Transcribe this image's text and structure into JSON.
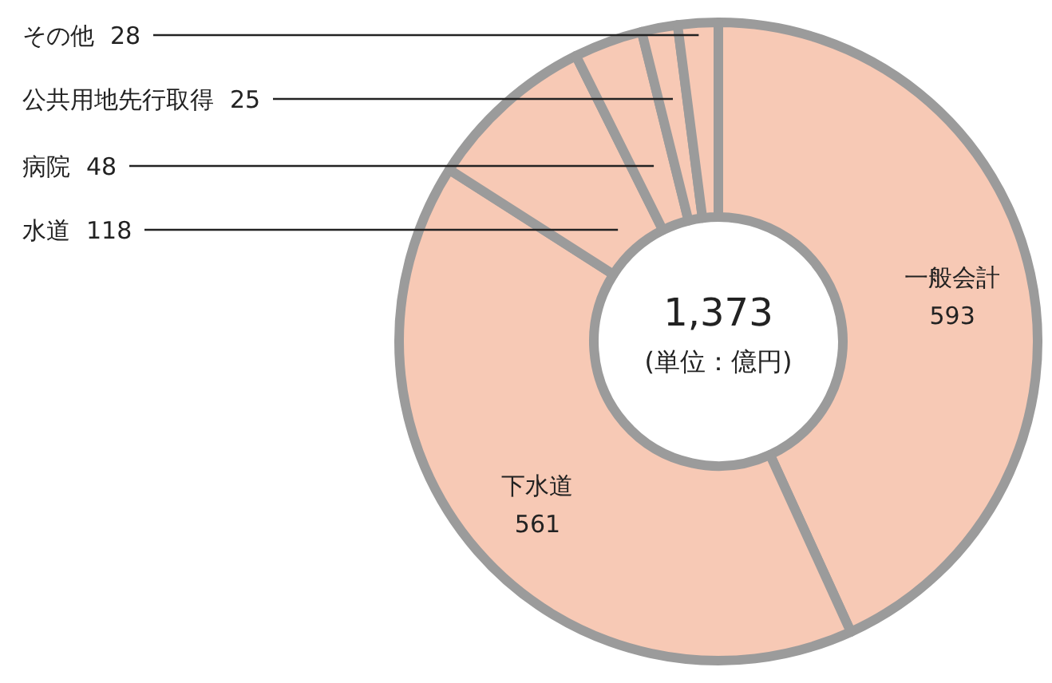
{
  "chart_data": {
    "type": "donut",
    "categories": [
      "一般会計",
      "下水道",
      "水道",
      "病院",
      "公共用地先行取得",
      "その他"
    ],
    "values": [
      593,
      561,
      118,
      48,
      25,
      28
    ],
    "colors": [
      "#f7c9b5",
      "#f7c9b5",
      "#f7c9b5",
      "#f7c9b5",
      "#f7c9b5",
      "#f7c9b5"
    ],
    "data_labels": true,
    "annotations": [
      "1,373",
      "(単位：億円)"
    ]
  }
}
